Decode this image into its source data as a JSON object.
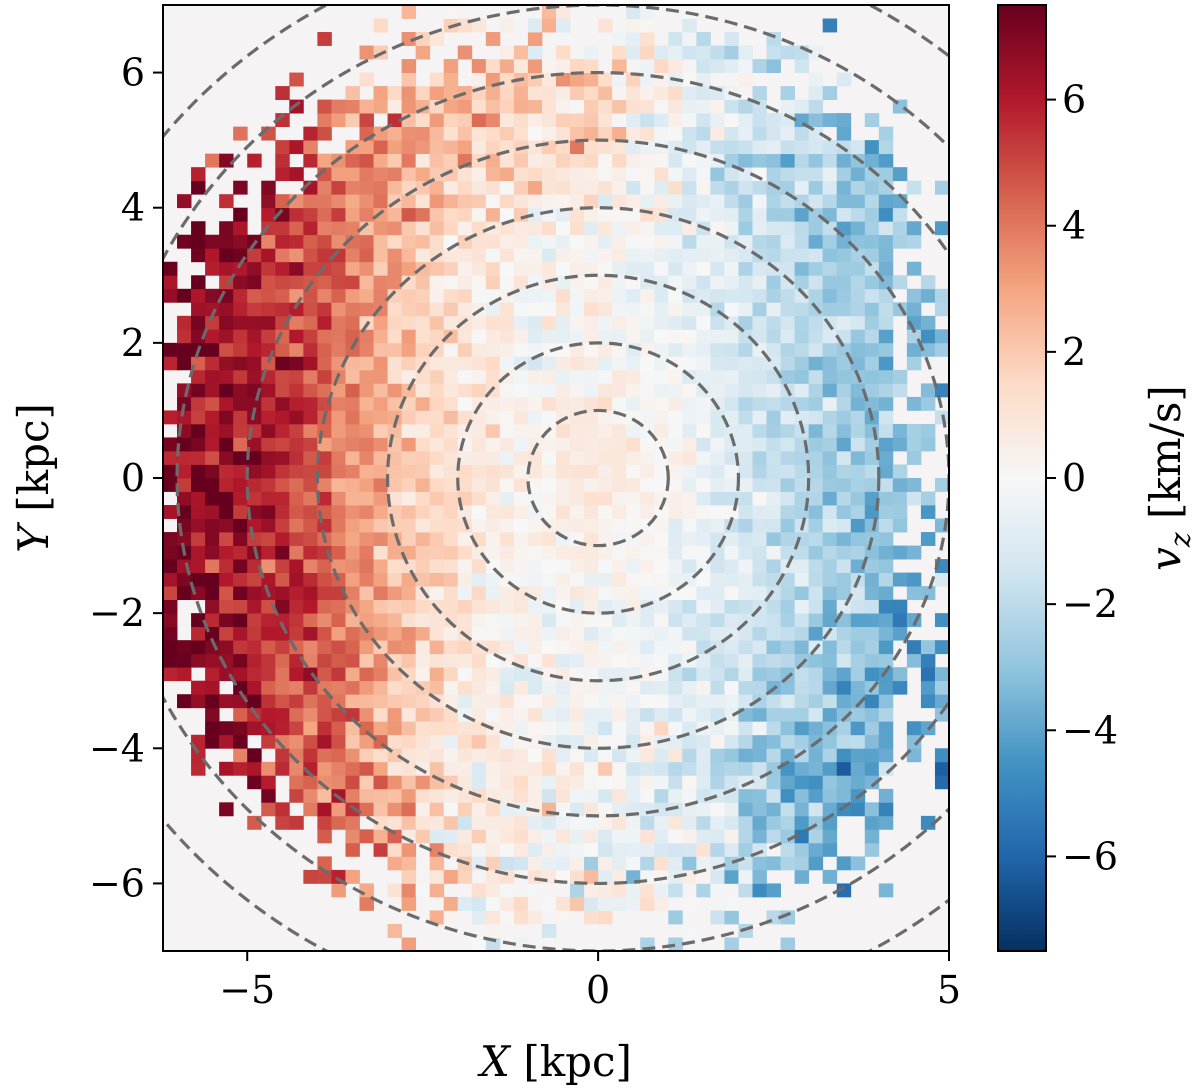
{
  "chart_data": {
    "type": "heatmap",
    "title": "",
    "xlabel": "X [kpc]",
    "ylabel": "Y [kpc]",
    "xlabel_var": "X",
    "xlabel_unit": "[kpc]",
    "ylabel_var": "Y",
    "ylabel_unit": "[kpc]",
    "xlim": [
      -6.2,
      5
    ],
    "ylim": [
      -7,
      7
    ],
    "bin_size_kpc": 0.2,
    "x_ticks": [
      -5,
      0,
      5
    ],
    "x_tick_labels": [
      "−5",
      "0",
      "5"
    ],
    "y_ticks": [
      -6,
      -4,
      -2,
      0,
      2,
      4,
      6
    ],
    "y_tick_labels": [
      "−6",
      "−4",
      "−2",
      "0",
      "2",
      "4",
      "6"
    ],
    "colorbar": {
      "label": "v_z [km/s]",
      "label_var": "v",
      "label_sub": "z",
      "label_unit": "[km/s]",
      "range": [
        -7.5,
        7.5
      ],
      "ticks": [
        -6,
        -4,
        -2,
        0,
        2,
        4,
        6
      ],
      "tick_labels": [
        "−6",
        "−4",
        "−2",
        "0",
        "2",
        "4",
        "6"
      ],
      "colormap": "RdBu_r",
      "low_color": "#053061",
      "mid_color": "#f7f7f7",
      "high_color": "#67001f"
    },
    "circle_radii_kpc": [
      1,
      2,
      3,
      4,
      5,
      6,
      7,
      8
    ],
    "circle_center_kpc": [
      0,
      0
    ],
    "circle_style": "dashed gray",
    "empty_bin_color": "#f5f3f3",
    "field_description": "v_z is approximately +6 to +7 km/s for X between -6 and -4 kpc, falls through ~0 near X = -2 kpc, and reaches about -2 to -4 km/s for X between +2 and +4 kpc, with a mild positive region near the center. Bins are filled only where |X| and radius fall inside the observed footprint.",
    "gradient_model": {
      "vz_at_x": [
        [
          -6,
          6.8
        ],
        [
          -5,
          6.2
        ],
        [
          -4,
          4.6
        ],
        [
          -3,
          2.6
        ],
        [
          -2,
          0.9
        ],
        [
          -1,
          0.0
        ],
        [
          0,
          -0.1
        ],
        [
          1,
          -0.6
        ],
        [
          2,
          -1.3
        ],
        [
          3,
          -2.1
        ],
        [
          4,
          -3.0
        ],
        [
          5,
          -3.4
        ]
      ],
      "center_bump_kpc": [
        0.3,
        0.2
      ],
      "center_bump_amp": 0.9,
      "top_bump_center_kpc": [
        -1.0,
        5.5
      ],
      "top_bump_amp": 1.8
    },
    "coverage": {
      "max_radius_kpc": 7.2,
      "inner_radius_full_kpc": 6.0,
      "left_x_min_kpc": -6.2,
      "right_x_max_kpc": 4.6
    }
  }
}
